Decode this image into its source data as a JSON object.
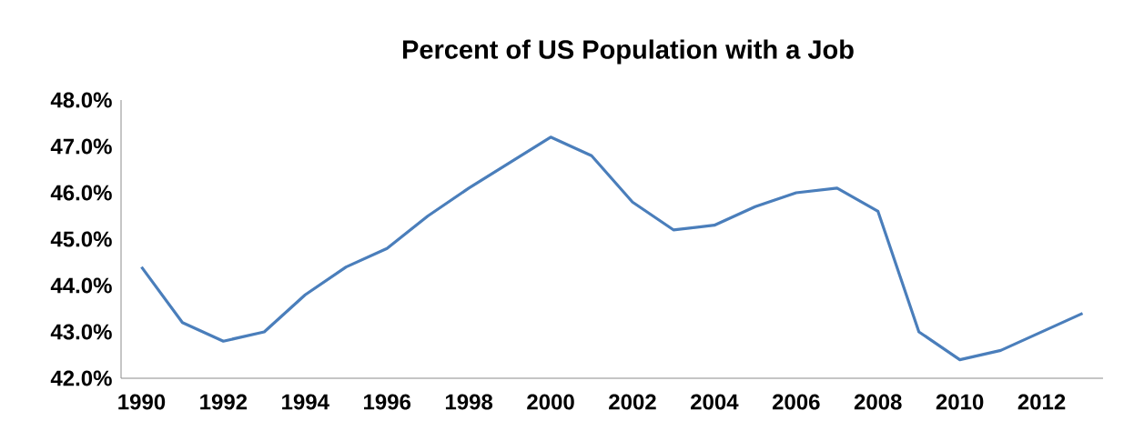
{
  "chart_data": {
    "type": "line",
    "title": "Percent of US Population with a Job",
    "categories": [
      "1990",
      null,
      "1992",
      null,
      "1994",
      null,
      "1996",
      null,
      "1998",
      null,
      "2000",
      null,
      "2002",
      null,
      "2004",
      null,
      "2006",
      null,
      "2008",
      null,
      "2010",
      null,
      "2012",
      null
    ],
    "series": [
      {
        "color": "#4a7ebb",
        "values": [
          44.4,
          43.2,
          42.8,
          43.0,
          43.8,
          44.4,
          44.8,
          45.5,
          46.1,
          46.65,
          47.2,
          46.8,
          45.8,
          45.2,
          45.3,
          45.7,
          46.0,
          46.1,
          45.6,
          43.0,
          42.4,
          42.6,
          43.0,
          43.4
        ]
      }
    ],
    "ylim": [
      42,
      48
    ],
    "yticks": [
      {
        "value": 42,
        "label": "42.0%"
      },
      {
        "value": 43,
        "label": "43.0%"
      },
      {
        "value": 44,
        "label": "44.0%"
      },
      {
        "value": 45,
        "label": "45.0%"
      },
      {
        "value": 46,
        "label": "46.0%"
      },
      {
        "value": 47,
        "label": "47.0%"
      },
      {
        "value": 48,
        "label": "48.0%"
      }
    ]
  }
}
